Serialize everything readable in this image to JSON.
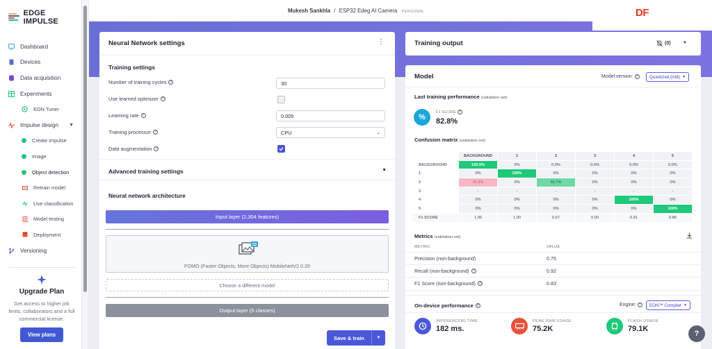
{
  "brand": {
    "name": "EDGE IMPULSE"
  },
  "header": {
    "user": "Mukesh Sankhla",
    "separator": "/",
    "project": "ESP32 Edeg AI Camera",
    "tag": "PERSONAL",
    "badge": "DF"
  },
  "sidebar": {
    "items": [
      {
        "label": "Dashboard",
        "icon": "monitor-icon"
      },
      {
        "label": "Devices",
        "icon": "device-icon"
      },
      {
        "label": "Data acquisition",
        "icon": "database-icon"
      },
      {
        "label": "Experiments",
        "icon": "table-icon"
      },
      {
        "label": "EON Tuner",
        "icon": "tuner-icon"
      },
      {
        "label": "Impulse design",
        "icon": "pulse-icon"
      },
      {
        "label": "Create impulse"
      },
      {
        "label": "Image"
      },
      {
        "label": "Object detection"
      },
      {
        "label": "Retrain model"
      },
      {
        "label": "Live classification"
      },
      {
        "label": "Model testing"
      },
      {
        "label": "Deployment"
      },
      {
        "label": "Versioning",
        "icon": "branch-icon"
      }
    ],
    "upgrade": {
      "title": "Upgrade Plan",
      "text": "Get access to higher job limits, collaborators and a full commercial license.",
      "button": "View plans"
    }
  },
  "nn": {
    "title": "Neural Network settings",
    "training_title": "Training settings",
    "cycles_label": "Number of training cycles",
    "cycles_value": "30",
    "optimizer_label": "Use learned optimizer",
    "lr_label": "Learning rate",
    "lr_value": "0.005",
    "processor_label": "Training processor",
    "processor_value": "CPU",
    "augment_label": "Data augmentation",
    "advanced_label": "Advanced training settings",
    "arch_title": "Neural network architecture",
    "input_layer": "Input layer (2,304 features)",
    "model_name": "FOMO (Faster Objects, More Objects) MobileNetV2 0.35",
    "choose_model": "Choose a different model",
    "output_layer": "Output layer (5 classes)",
    "save_train": "Save & train"
  },
  "training_output": {
    "title": "Training output",
    "count": "(0)"
  },
  "model": {
    "title": "Model",
    "version_label": "Model version:",
    "version_value": "Quantized (int8)",
    "last_perf": "Last training performance",
    "validation_set": "(validation set)",
    "f1_label": "F1 SCORE",
    "f1_value": "82.8%",
    "cm_title": "Confusion matrix",
    "cm": {
      "cols": [
        "BACKGROUND",
        "1",
        "2",
        "3",
        "4",
        "5"
      ],
      "rows": [
        {
          "label": "BACKGROUND",
          "cells": [
            "100.0%",
            "0%",
            "0.0%",
            "0.0%",
            "0.0%",
            "0.0%"
          ]
        },
        {
          "label": "1",
          "cells": [
            "0%",
            "100%",
            "0%",
            "0%",
            "0%",
            "0%"
          ]
        },
        {
          "label": "2",
          "cells": [
            "33.3%",
            "0%",
            "66.7%",
            "0%",
            "0%",
            "0%"
          ]
        },
        {
          "label": "3",
          "cells": [
            "-",
            "-",
            "-",
            "-",
            "-",
            "-"
          ]
        },
        {
          "label": "4",
          "cells": [
            "0%",
            "0%",
            "0%",
            "0%",
            "100%",
            "0%"
          ]
        },
        {
          "label": "5",
          "cells": [
            "0%",
            "0%",
            "0%",
            "0%",
            "0%",
            "100%"
          ]
        },
        {
          "label": "F1 SCORE",
          "cells": [
            "1.00",
            "1.00",
            "0.67",
            "0.00",
            "0.91",
            "0.86"
          ]
        }
      ]
    },
    "metrics_title": "Metrics",
    "metrics_head": [
      "METRIC",
      "VALUE"
    ],
    "metrics": [
      {
        "name": "Precision (non-background)",
        "value": "0.75"
      },
      {
        "name": "Recall (non-background)",
        "value": "0.92"
      },
      {
        "name": "F1 Score (non-background)",
        "value": "0.83"
      }
    ],
    "ondevice_title": "On-device performance",
    "engine_label": "Engine:",
    "engine_value": "EON™ Compiler",
    "inference_label": "INFERENCING TIME",
    "inference_value": "182 ms.",
    "ram_label": "PEAK RAM USAGE",
    "ram_value": "75.2K",
    "flash_label": "FLASH USAGE",
    "flash_value": "79.1K"
  },
  "help": "?",
  "colors": {
    "accent": "#4059d3",
    "green": "#1ec97a",
    "purple": "#6a6fd8"
  }
}
